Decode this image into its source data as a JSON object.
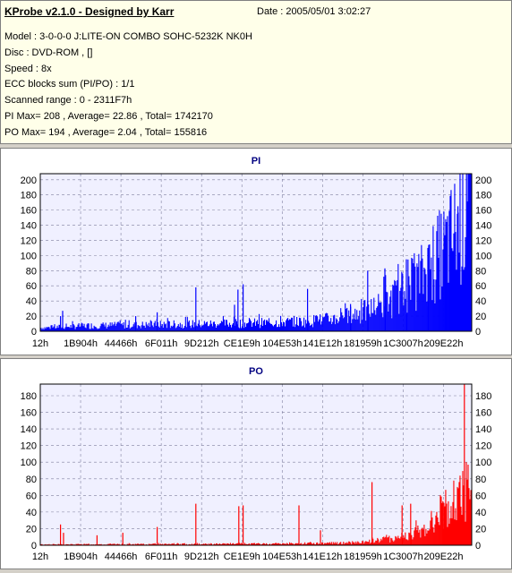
{
  "header": {
    "title": "KProbe v2.1.0 - Designed by Karr",
    "date": "Date : 2005/05/01 3:02:27",
    "lines": [
      "Model : 3-0-0-0 J:LITE-ON COMBO SOHC-5232K NK0H",
      "Disc : DVD-ROM ,  []",
      "Speed : 8x",
      "ECC blocks sum (PI/PO) : 1/1",
      "Scanned range : 0 - 2311F7h",
      "PI Max= 208 , Average= 22.86 , Total= 1742170",
      "PO Max= 194 , Average= 2.04 , Total= 155816"
    ]
  },
  "chart_data": [
    {
      "type": "bar",
      "title": "PI",
      "color": "#0000ff",
      "x_ticks": [
        "12h",
        "1B904h",
        "44466h",
        "6F011h",
        "9D212h",
        "CE1E9h",
        "104E53h",
        "141E12h",
        "181959h",
        "1C3007h",
        "209E22h"
      ],
      "ylim": [
        0,
        208
      ],
      "y_ticks": [
        0,
        20,
        40,
        60,
        80,
        100,
        120,
        140,
        160,
        180,
        200
      ],
      "grid": true,
      "baseline": [
        [
          0,
          5
        ],
        [
          0.1,
          8
        ],
        [
          0.3,
          10
        ],
        [
          0.5,
          12
        ],
        [
          0.6,
          14
        ],
        [
          0.65,
          16
        ],
        [
          0.7,
          20
        ],
        [
          0.75,
          28
        ],
        [
          0.8,
          40
        ],
        [
          0.85,
          60
        ],
        [
          0.9,
          90
        ],
        [
          0.95,
          130
        ],
        [
          1.0,
          195
        ]
      ],
      "spikes": [
        [
          0.05,
          27
        ],
        [
          0.045,
          20
        ],
        [
          0.22,
          20
        ],
        [
          0.27,
          25
        ],
        [
          0.36,
          58
        ],
        [
          0.45,
          35
        ],
        [
          0.458,
          55
        ],
        [
          0.47,
          62
        ],
        [
          0.62,
          56
        ],
        [
          0.72,
          36
        ],
        [
          0.76,
          80
        ],
        [
          0.8,
          83
        ],
        [
          0.85,
          95
        ],
        [
          0.9,
          110
        ],
        [
          0.97,
          165
        ],
        [
          0.99,
          208
        ]
      ],
      "max": 208,
      "average": 22.86
    },
    {
      "type": "bar",
      "title": "PO",
      "color": "#ff0000",
      "x_ticks": [
        "12h",
        "1B904h",
        "44466h",
        "6F011h",
        "9D212h",
        "CE1E9h",
        "104E53h",
        "141E12h",
        "181959h",
        "1C3007h",
        "209E22h"
      ],
      "ylim": [
        0,
        194
      ],
      "y_ticks": [
        0,
        20,
        40,
        60,
        80,
        100,
        120,
        140,
        160,
        180
      ],
      "grid": true,
      "baseline": [
        [
          0,
          1
        ],
        [
          0.6,
          2
        ],
        [
          0.7,
          3
        ],
        [
          0.75,
          4
        ],
        [
          0.8,
          8
        ],
        [
          0.85,
          12
        ],
        [
          0.9,
          22
        ],
        [
          0.95,
          42
        ],
        [
          1.0,
          88
        ]
      ],
      "spikes": [
        [
          0.045,
          25
        ],
        [
          0.052,
          15
        ],
        [
          0.13,
          12
        ],
        [
          0.19,
          15
        ],
        [
          0.27,
          22
        ],
        [
          0.36,
          50
        ],
        [
          0.46,
          47
        ],
        [
          0.47,
          48
        ],
        [
          0.6,
          48
        ],
        [
          0.65,
          18
        ],
        [
          0.77,
          76
        ],
        [
          0.84,
          48
        ],
        [
          0.86,
          50
        ],
        [
          0.935,
          53
        ],
        [
          0.985,
          194
        ]
      ],
      "max": 194,
      "average": 2.04
    }
  ]
}
